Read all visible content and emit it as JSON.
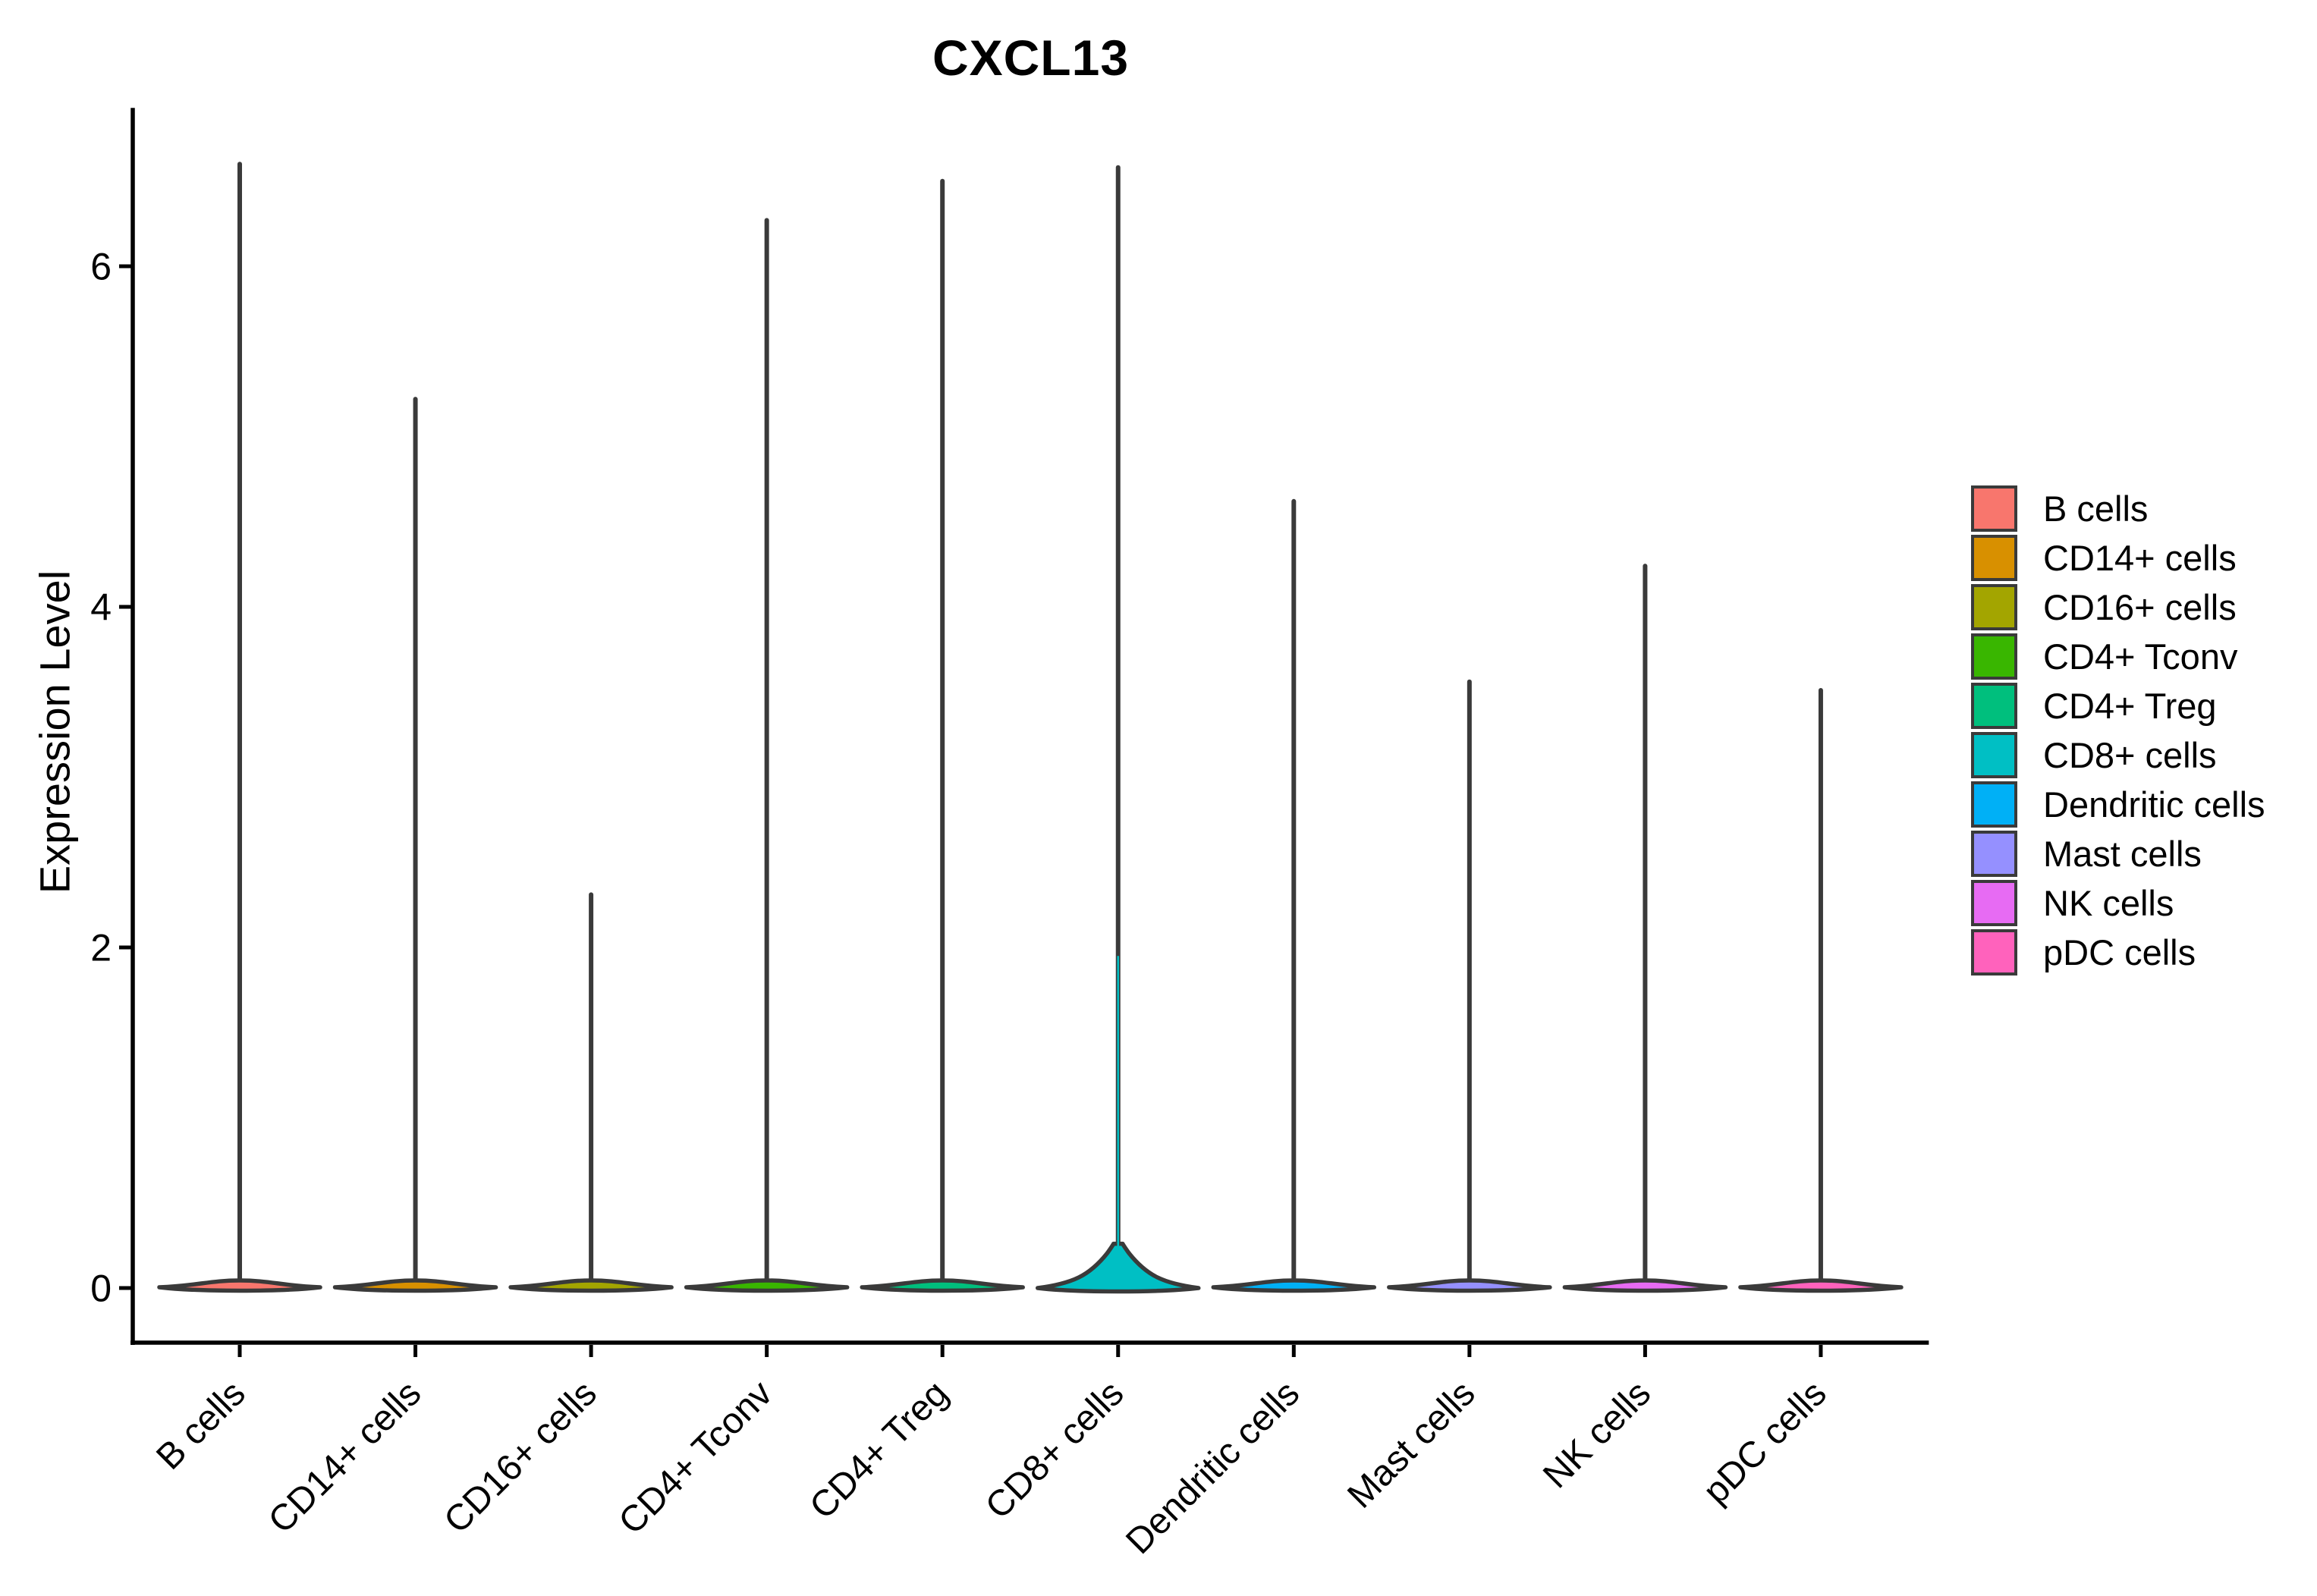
{
  "figure": {
    "title": "CXCL13",
    "y_axis_label": "Expression Level"
  },
  "chart_data": {
    "type": "violin",
    "title": "CXCL13",
    "xlabel": "",
    "ylabel": "Expression Level",
    "ylim": [
      -0.33,
      6.93
    ],
    "yticks": [
      0,
      2,
      4,
      6
    ],
    "grid": false,
    "legend_position": "right",
    "categories": [
      "B cells",
      "CD14+ cells",
      "CD16+ cells",
      "CD4+ Tconv",
      "CD4+ Treg",
      "CD8+ cells",
      "Dendritic cells",
      "Mast cells",
      "NK cells",
      "pDC cells"
    ],
    "colors": [
      "#F8766D",
      "#D89000",
      "#A3A500",
      "#39B600",
      "#00BF7D",
      "#00BFC4",
      "#00B0F6",
      "#9590FF",
      "#E76BF3",
      "#FF62BC"
    ],
    "series": [
      {
        "name": "B cells",
        "color": "#F8766D",
        "max_expression": 6.6,
        "body": "flat"
      },
      {
        "name": "CD14+ cells",
        "color": "#D89000",
        "max_expression": 5.22,
        "body": "flat"
      },
      {
        "name": "CD16+ cells",
        "color": "#A3A500",
        "max_expression": 2.31,
        "body": "flat"
      },
      {
        "name": "CD4+ Tconv",
        "color": "#39B600",
        "max_expression": 6.27,
        "body": "flat"
      },
      {
        "name": "CD4+ Treg",
        "color": "#00BF7D",
        "max_expression": 6.5,
        "body": "flat"
      },
      {
        "name": "CD8+ cells",
        "color": "#00BFC4",
        "max_expression": 6.58,
        "body": "bulged",
        "body_top": 0.26,
        "colored_tail_top": 1.95
      },
      {
        "name": "Dendritic cells",
        "color": "#00B0F6",
        "max_expression": 4.62,
        "body": "flat"
      },
      {
        "name": "Mast cells",
        "color": "#9590FF",
        "max_expression": 3.56,
        "body": "flat"
      },
      {
        "name": "NK cells",
        "color": "#E76BF3",
        "max_expression": 4.24,
        "body": "flat"
      },
      {
        "name": "pDC cells",
        "color": "#FF62BC",
        "max_expression": 3.51,
        "body": "flat"
      }
    ],
    "legend_items": [
      {
        "label": "B cells",
        "color": "#F8766D"
      },
      {
        "label": "CD14+ cells",
        "color": "#D89000"
      },
      {
        "label": "CD16+ cells",
        "color": "#A3A500"
      },
      {
        "label": "CD4+ Tconv",
        "color": "#39B600"
      },
      {
        "label": "CD4+ Treg",
        "color": "#00BF7D"
      },
      {
        "label": "CD8+ cells",
        "color": "#00BFC4"
      },
      {
        "label": "Dendritic cells",
        "color": "#00B0F6"
      },
      {
        "label": "Mast cells",
        "color": "#9590FF"
      },
      {
        "label": "NK cells",
        "color": "#E76BF3"
      },
      {
        "label": "pDC cells",
        "color": "#FF62BC"
      }
    ]
  }
}
